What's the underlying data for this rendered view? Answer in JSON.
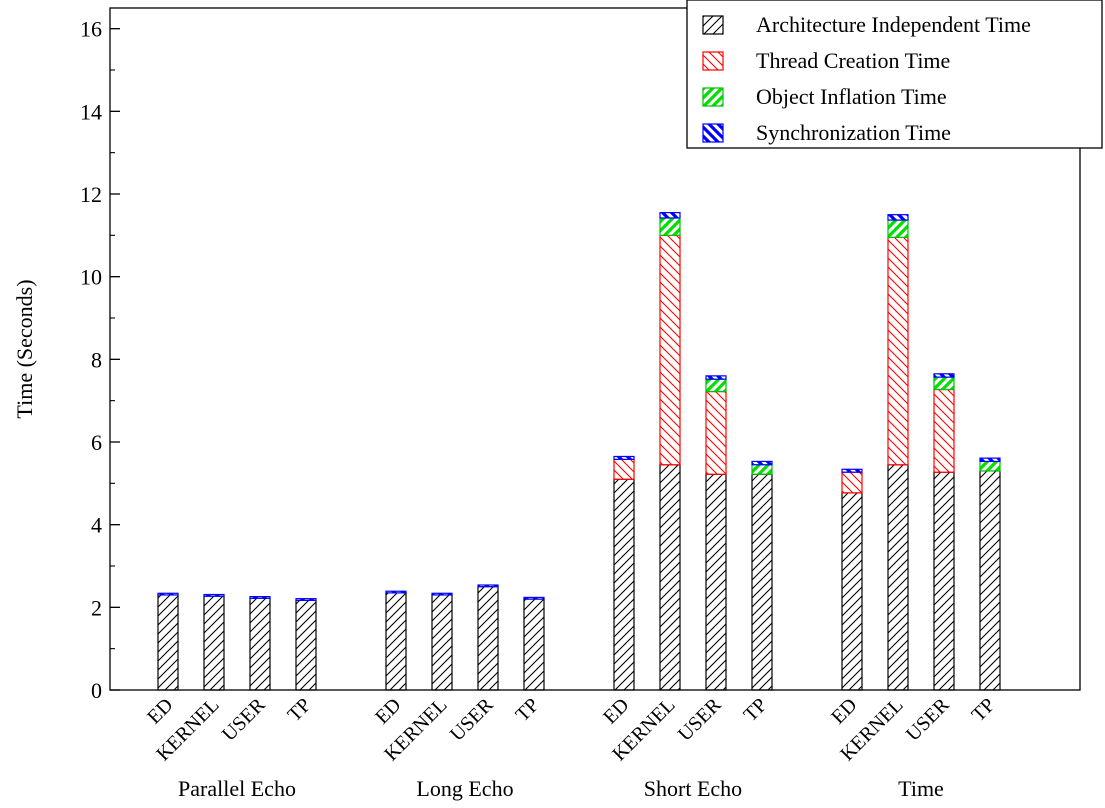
{
  "chart_data": {
    "type": "bar",
    "stacked": true,
    "title": "",
    "xlabel": "",
    "ylabel": "Time (Seconds)",
    "ylim": [
      0,
      16.5
    ],
    "yticks": [
      "0",
      "2",
      "4",
      "6",
      "8",
      "10",
      "12",
      "14",
      "16"
    ],
    "grid": false,
    "legend_position": "top-right",
    "groups": [
      {
        "name": "Parallel Echo",
        "categories": [
          "ED",
          "KERNEL",
          "USER",
          "TP"
        ]
      },
      {
        "name": "Long Echo",
        "categories": [
          "ED",
          "KERNEL",
          "USER",
          "TP"
        ]
      },
      {
        "name": "Short Echo",
        "categories": [
          "ED",
          "KERNEL",
          "USER",
          "TP"
        ]
      },
      {
        "name": "Time",
        "categories": [
          "ED",
          "KERNEL",
          "USER",
          "TP"
        ]
      }
    ],
    "series": [
      {
        "name": "Architecture Independent Time",
        "color": "#000000",
        "pattern": "hatch-forward",
        "values": [
          2.3,
          2.27,
          2.22,
          2.17,
          2.35,
          2.3,
          2.5,
          2.2,
          5.1,
          5.45,
          5.22,
          5.22,
          4.77,
          5.45,
          5.27,
          5.3
        ]
      },
      {
        "name": "Thread Creation Time",
        "color": "#ff0000",
        "pattern": "hatch-back",
        "values": [
          0,
          0,
          0,
          0,
          0,
          0,
          0,
          0,
          0.48,
          5.55,
          2.0,
          0,
          0.5,
          5.5,
          2.0,
          0
        ]
      },
      {
        "name": "Object Inflation Time",
        "color": "#00e000",
        "pattern": "hatch-forward-bold",
        "values": [
          0,
          0,
          0,
          0,
          0,
          0,
          0,
          0,
          0,
          0.42,
          0.3,
          0.23,
          0,
          0.42,
          0.3,
          0.23
        ]
      },
      {
        "name": "Synchronization Time",
        "color": "#0000ff",
        "pattern": "hatch-back-bold",
        "values": [
          0.04,
          0.04,
          0.04,
          0.04,
          0.04,
          0.04,
          0.04,
          0.04,
          0.07,
          0.13,
          0.08,
          0.08,
          0.07,
          0.13,
          0.08,
          0.08
        ]
      }
    ]
  }
}
